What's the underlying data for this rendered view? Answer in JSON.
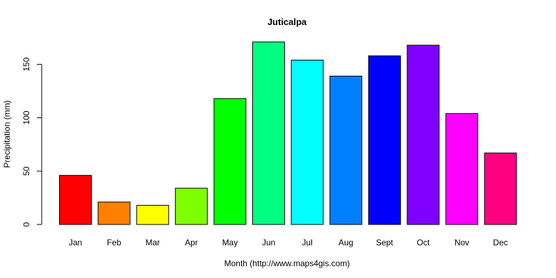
{
  "chart_data": {
    "type": "bar",
    "title": "Juticalpa",
    "xlabel": "Month (http://www.maps4gis.com)",
    "ylabel": "Precipitation (mm)",
    "categories": [
      "Jan",
      "Feb",
      "Mar",
      "Apr",
      "May",
      "Jun",
      "Jul",
      "Aug",
      "Sept",
      "Oct",
      "Nov",
      "Dec"
    ],
    "values": [
      46,
      21,
      18,
      34,
      118,
      171,
      154,
      139,
      158,
      168,
      104,
      67
    ],
    "colors": [
      "#FF0000",
      "#FF8000",
      "#FFFF00",
      "#80FF00",
      "#00FF00",
      "#00FF80",
      "#00FFFF",
      "#0080FF",
      "#0000FF",
      "#8000FF",
      "#FF00FF",
      "#FF0080"
    ],
    "yticks": [
      0,
      50,
      100,
      150
    ],
    "ylim": [
      0,
      175
    ],
    "grid": false,
    "legend": "none"
  }
}
